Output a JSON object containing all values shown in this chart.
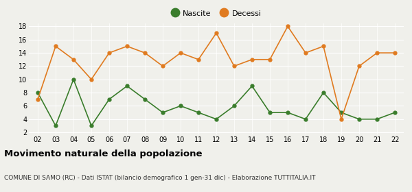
{
  "years": [
    2,
    3,
    4,
    5,
    6,
    7,
    8,
    9,
    10,
    11,
    12,
    13,
    14,
    15,
    16,
    17,
    18,
    19,
    20,
    21,
    22
  ],
  "nascite": [
    8,
    3,
    10,
    3,
    7,
    9,
    7,
    5,
    6,
    5,
    4,
    6,
    9,
    5,
    5,
    4,
    8,
    5,
    4,
    4,
    5
  ],
  "decessi": [
    7,
    15,
    13,
    10,
    14,
    15,
    14,
    12,
    14,
    13,
    17,
    12,
    13,
    13,
    18,
    14,
    15,
    4,
    12,
    14,
    14
  ],
  "nascite_color": "#3a7d2c",
  "decessi_color": "#e07b20",
  "title": "Movimento naturale della popolazione",
  "subtitle": "COMUNE DI SAMO (RC) - Dati ISTAT (bilancio demografico 1 gen-31 dic) - Elaborazione TUTTITALIA.IT",
  "legend_nascite": "Nascite",
  "legend_decessi": "Decessi",
  "ylim_min": 2,
  "ylim_max": 18,
  "yticks": [
    2,
    4,
    6,
    8,
    10,
    12,
    14,
    16,
    18
  ],
  "bg_color": "#f0f0eb",
  "title_fontsize": 9.5,
  "subtitle_fontsize": 6.5,
  "tick_fontsize": 7,
  "legend_fontsize": 8
}
